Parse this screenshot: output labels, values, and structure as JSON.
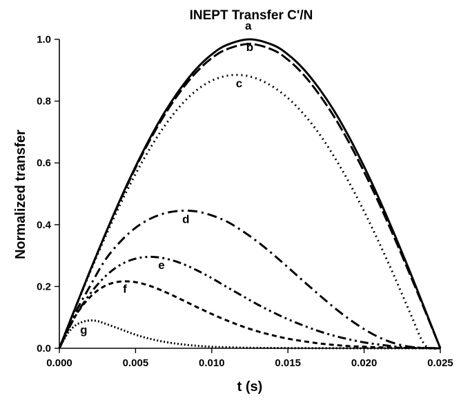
{
  "chart_data": {
    "type": "line",
    "title": "INEPT Transfer C'/N",
    "xlabel": "t (s)",
    "ylabel": "Normalized transfer",
    "xlim": [
      0,
      0.025
    ],
    "ylim": [
      0,
      1.0
    ],
    "x_ticks": [
      0,
      0.005,
      0.01,
      0.015,
      0.02,
      0.025
    ],
    "x_tick_labels": [
      "0.000",
      "0.005",
      "0.010",
      "0.015",
      "0.020",
      "0.025"
    ],
    "y_ticks": [
      0,
      0.2,
      0.4,
      0.6,
      0.8,
      1.0
    ],
    "y_tick_labels": [
      "0.0",
      "0.2",
      "0.4",
      "0.6",
      "0.8",
      "1.0"
    ],
    "grid": false,
    "series": [
      {
        "label": "a",
        "dash": "solid",
        "color": "#000000",
        "x": [
          0,
          0.001,
          0.002,
          0.003,
          0.004,
          0.005,
          0.006,
          0.007,
          0.008,
          0.009,
          0.01,
          0.011,
          0.0125,
          0.014,
          0.015,
          0.016,
          0.017,
          0.018,
          0.019,
          0.02,
          0.021,
          0.022,
          0.023,
          0.024,
          0.025
        ],
        "y": [
          0,
          0.125,
          0.249,
          0.368,
          0.482,
          0.588,
          0.685,
          0.771,
          0.844,
          0.905,
          0.951,
          0.982,
          1.0,
          0.982,
          0.951,
          0.905,
          0.844,
          0.771,
          0.685,
          0.588,
          0.482,
          0.368,
          0.249,
          0.125,
          0
        ]
      },
      {
        "label": "b",
        "dash": "dashed",
        "color": "#000000",
        "x": [
          0,
          0.001,
          0.002,
          0.003,
          0.004,
          0.005,
          0.006,
          0.007,
          0.008,
          0.009,
          0.01,
          0.011,
          0.0125,
          0.014,
          0.015,
          0.016,
          0.017,
          0.018,
          0.019,
          0.02,
          0.021,
          0.022,
          0.023,
          0.024,
          0.025
        ],
        "y": [
          0,
          0.125,
          0.248,
          0.367,
          0.479,
          0.584,
          0.679,
          0.763,
          0.835,
          0.894,
          0.939,
          0.968,
          0.985,
          0.966,
          0.934,
          0.887,
          0.825,
          0.752,
          0.667,
          0.571,
          0.467,
          0.356,
          0.24,
          0.121,
          0
        ]
      },
      {
        "label": "c",
        "dash": "dotted",
        "color": "#000000",
        "x": [
          0,
          0.001,
          0.002,
          0.003,
          0.004,
          0.005,
          0.006,
          0.007,
          0.008,
          0.009,
          0.01,
          0.011,
          0.012,
          0.013,
          0.014,
          0.015,
          0.016,
          0.017,
          0.018,
          0.019,
          0.02,
          0.021,
          0.022,
          0.023,
          0.024,
          0.025
        ],
        "y": [
          0,
          0.124,
          0.244,
          0.359,
          0.466,
          0.564,
          0.651,
          0.726,
          0.788,
          0.835,
          0.866,
          0.882,
          0.884,
          0.872,
          0.847,
          0.81,
          0.76,
          0.698,
          0.623,
          0.538,
          0.443,
          0.34,
          0.231,
          0.117,
          0.01,
          0
        ]
      },
      {
        "label": "d",
        "dash": "dashdot",
        "color": "#000000",
        "x": [
          0,
          0.001,
          0.002,
          0.003,
          0.004,
          0.005,
          0.006,
          0.007,
          0.008,
          0.009,
          0.01,
          0.011,
          0.012,
          0.013,
          0.014,
          0.015,
          0.016,
          0.017,
          0.018,
          0.019,
          0.02,
          0.021,
          0.022,
          0.023,
          0.024,
          0.025
        ],
        "y": [
          0,
          0.11,
          0.2,
          0.285,
          0.345,
          0.39,
          0.42,
          0.438,
          0.445,
          0.443,
          0.43,
          0.41,
          0.38,
          0.345,
          0.305,
          0.262,
          0.218,
          0.175,
          0.133,
          0.095,
          0.062,
          0.035,
          0.016,
          0.005,
          0.001,
          0
        ]
      },
      {
        "label": "e",
        "dash": "dashdotdot",
        "color": "#000000",
        "x": [
          0,
          0.001,
          0.002,
          0.003,
          0.004,
          0.005,
          0.006,
          0.007,
          0.008,
          0.009,
          0.01,
          0.011,
          0.012,
          0.013,
          0.014,
          0.015,
          0.016,
          0.017,
          0.018,
          0.019,
          0.02,
          0.021,
          0.022,
          0.023,
          0.024,
          0.025
        ],
        "y": [
          0,
          0.1,
          0.175,
          0.232,
          0.27,
          0.29,
          0.296,
          0.29,
          0.275,
          0.253,
          0.227,
          0.198,
          0.17,
          0.142,
          0.117,
          0.094,
          0.074,
          0.056,
          0.041,
          0.029,
          0.019,
          0.012,
          0.006,
          0.003,
          0.001,
          0
        ]
      },
      {
        "label": "f",
        "dash": "shortdash",
        "color": "#000000",
        "x": [
          0,
          0.001,
          0.002,
          0.003,
          0.004,
          0.005,
          0.006,
          0.007,
          0.008,
          0.009,
          0.01,
          0.011,
          0.012,
          0.013,
          0.014,
          0.015,
          0.016,
          0.017,
          0.018,
          0.019,
          0.02,
          0.021,
          0.022,
          0.023,
          0.024,
          0.025
        ],
        "y": [
          0,
          0.1,
          0.165,
          0.202,
          0.216,
          0.214,
          0.201,
          0.181,
          0.158,
          0.134,
          0.111,
          0.09,
          0.071,
          0.055,
          0.042,
          0.031,
          0.023,
          0.016,
          0.011,
          0.007,
          0.005,
          0.003,
          0.002,
          0.001,
          0.0005,
          0
        ]
      },
      {
        "label": "g",
        "dash": "finedot",
        "color": "#000000",
        "x": [
          0,
          0.0005,
          0.001,
          0.0015,
          0.002,
          0.0025,
          0.003,
          0.004,
          0.005,
          0.006,
          0.007,
          0.008,
          0.009,
          0.01,
          0.012,
          0.014,
          0.016,
          0.018,
          0.02,
          0.022,
          0.025
        ],
        "y": [
          0,
          0.045,
          0.072,
          0.085,
          0.09,
          0.088,
          0.08,
          0.062,
          0.044,
          0.03,
          0.02,
          0.013,
          0.008,
          0.005,
          0.002,
          0.001,
          0.0005,
          0.0002,
          0.0001,
          0,
          0
        ]
      }
    ],
    "curve_labels": [
      {
        "text": "a",
        "x": 0.0124,
        "y": 1.031
      },
      {
        "text": "b",
        "x": 0.0125,
        "y": 0.962
      },
      {
        "text": "c",
        "x": 0.0118,
        "y": 0.845
      },
      {
        "text": "d",
        "x": 0.0083,
        "y": 0.405
      },
      {
        "text": "e",
        "x": 0.0067,
        "y": 0.257
      },
      {
        "text": "f",
        "x": 0.0043,
        "y": 0.18
      },
      {
        "text": "g",
        "x": 0.0016,
        "y": 0.047
      }
    ]
  }
}
